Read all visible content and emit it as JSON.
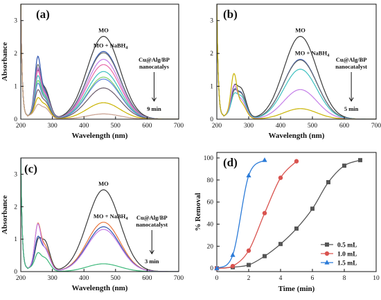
{
  "chart_data": [
    {
      "type": "line",
      "panel_label": "(a)",
      "xlabel": "Wavelength (nm)",
      "ylabel": "Absorbance",
      "xlim": [
        200,
        700
      ],
      "ylim": [
        0,
        3.5
      ],
      "xticks": [
        200,
        300,
        400,
        500,
        600,
        700
      ],
      "yticks": [
        0,
        1,
        2,
        3
      ],
      "annotations": {
        "top": "MO",
        "second": "MO + NaBH4",
        "catalyst": [
          "Cu@Alg/BP",
          "nanocatalys"
        ],
        "time": "9 min"
      },
      "series": [
        {
          "color": "#3a3a3a",
          "peak": 2.52,
          "p255": 1.42,
          "p270": 0.93
        },
        {
          "color": "#2e54b0",
          "peak": 2.06,
          "p255": 1.88,
          "p270": 0.85
        },
        {
          "color": "#6e6e6e",
          "peak": 2.02,
          "p255": 1.65,
          "p270": 0.8
        },
        {
          "color": "#c47ee8",
          "peak": 1.82,
          "p255": 1.55,
          "p270": 0.78
        },
        {
          "color": "#e86aa8",
          "peak": 1.66,
          "p255": 1.48,
          "p270": 0.75
        },
        {
          "color": "#3cc0c0",
          "peak": 1.45,
          "p255": 1.35,
          "p270": 0.7
        },
        {
          "color": "#7ad16b",
          "peak": 1.28,
          "p255": 1.22,
          "p270": 0.66
        },
        {
          "color": "#5a84e0",
          "peak": 1.22,
          "p255": 1.15,
          "p270": 0.62
        },
        {
          "color": "#6a5a6a",
          "peak": 0.95,
          "p255": 0.98,
          "p270": 0.55
        },
        {
          "color": "#c9b300",
          "peak": 0.5,
          "p255": 0.78,
          "p270": 0.45
        },
        {
          "color": "#c8a090",
          "peak": 0.16,
          "p255": 0.62,
          "p270": 0.35
        }
      ]
    },
    {
      "type": "line",
      "panel_label": "(b)",
      "xlabel": "Wavelength (nm)",
      "ylabel": "",
      "xlim": [
        200,
        700
      ],
      "ylim": [
        0,
        3.5
      ],
      "xticks": [
        200,
        300,
        400,
        500,
        600,
        700
      ],
      "yticks": [
        0,
        1,
        2,
        3
      ],
      "annotations": {
        "top": "MO",
        "second": "MO + NaBH4",
        "catalyst": [
          "Cu@Alg/BP",
          "nanocatalyst"
        ],
        "time": "5 min"
      },
      "series": [
        {
          "color": "#3a3a3a",
          "peak": 2.52,
          "p255": 0.95,
          "p270": 0.93
        },
        {
          "color": "#2e54b0",
          "peak": 1.82,
          "p255": 0.88,
          "p270": 0.8
        },
        {
          "color": "#6e6e6e",
          "peak": 1.8,
          "p255": 0.86,
          "p270": 0.78
        },
        {
          "color": "#3cc0c0",
          "peak": 1.52,
          "p255": 0.8,
          "p270": 0.7
        },
        {
          "color": "#c47ee8",
          "peak": 0.9,
          "p255": 1.1,
          "p270": 0.6
        },
        {
          "color": "#c9b300",
          "peak": 0.32,
          "p255": 1.5,
          "p270": 0.5
        }
      ]
    },
    {
      "type": "line",
      "panel_label": "(c)",
      "xlabel": "Wavelength (nm)",
      "ylabel": "Absorbance",
      "xlim": [
        200,
        700
      ],
      "ylim": [
        0,
        3.5
      ],
      "xticks": [
        200,
        300,
        400,
        500,
        600,
        700
      ],
      "yticks": [
        0,
        1,
        2,
        3
      ],
      "annotations": {
        "top": "MO",
        "second": "MO + NaBH4",
        "catalyst": [
          "Cu@Alg/BP",
          "nanocatalyst"
        ],
        "time": "3 min"
      },
      "series": [
        {
          "color": "#3a3a3a",
          "peak": 2.52,
          "p255": 0.92,
          "p270": 0.95
        },
        {
          "color": "#e8743b",
          "peak": 1.52,
          "p255": 1.48,
          "p270": 0.8
        },
        {
          "color": "#2e54b0",
          "peak": 1.38,
          "p255": 1.1,
          "p270": 0.72
        },
        {
          "color": "#c47ee8",
          "peak": 1.3,
          "p255": 1.5,
          "p270": 0.7
        },
        {
          "color": "#3cb87a",
          "peak": 0.24,
          "p255": 0.72,
          "p270": 0.42
        }
      ]
    },
    {
      "type": "line",
      "panel_label": "(d)",
      "xlabel": "Time (min)",
      "ylabel": "% Removal",
      "xlim": [
        0,
        10
      ],
      "ylim": [
        -3,
        105
      ],
      "xticks": [
        0,
        2,
        4,
        6,
        8,
        10
      ],
      "yticks": [
        0,
        20,
        40,
        60,
        80,
        100
      ],
      "legend_position": "bottom-right",
      "series": [
        {
          "name": "0.5 mL",
          "color": "#555555",
          "marker": "square",
          "x": [
            0,
            1,
            2,
            3,
            4,
            5,
            6,
            7,
            8,
            9
          ],
          "y": [
            0,
            1,
            3,
            11,
            22,
            36,
            54,
            78,
            93,
            98
          ]
        },
        {
          "name": "1.0 mL",
          "color": "#d9534f",
          "marker": "circle",
          "x": [
            0,
            1,
            2,
            3,
            4,
            5
          ],
          "y": [
            0,
            2,
            16,
            50,
            82,
            97
          ]
        },
        {
          "name": "1.5 mL",
          "color": "#2b7bd8",
          "marker": "triangle",
          "x": [
            0,
            1,
            2,
            3
          ],
          "y": [
            0,
            12,
            84,
            98
          ]
        }
      ]
    }
  ]
}
